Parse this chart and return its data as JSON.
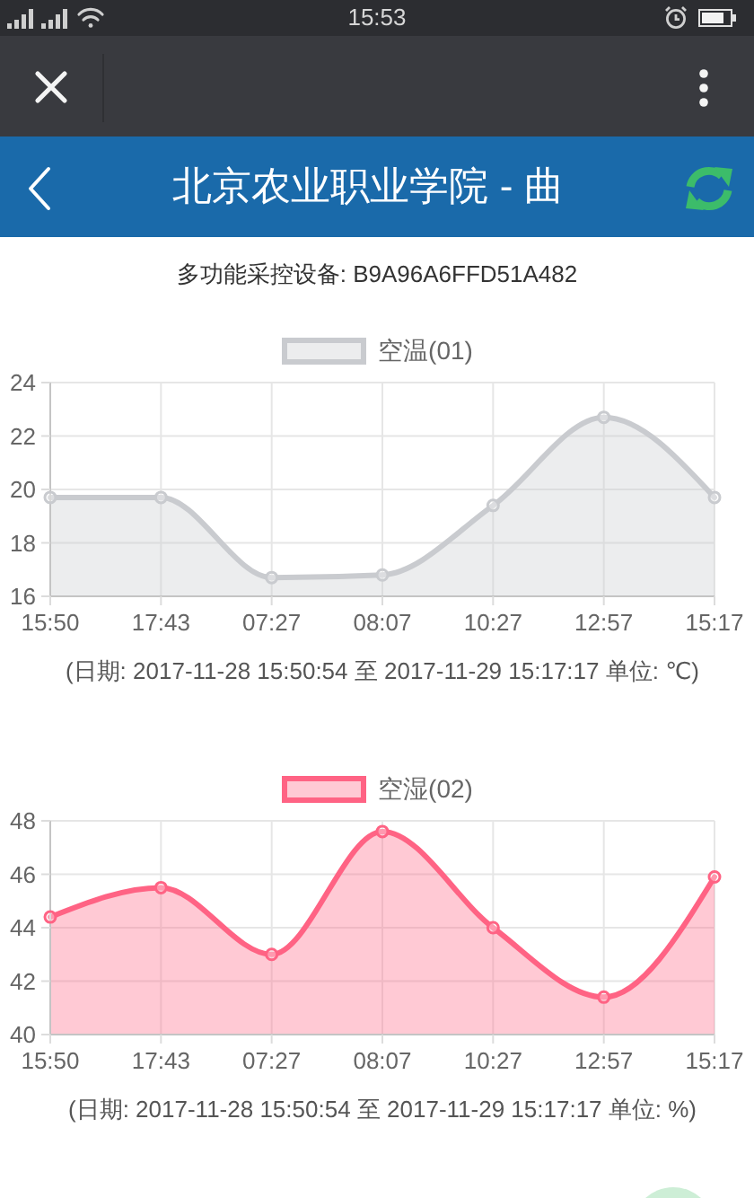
{
  "chart_data": [
    {
      "type": "area",
      "title": "北京农业职业学院 - 曲",
      "subtitle": "多功能采控设备: B9A96A6FFD51A482",
      "annotations": [
        "15:53"
      ],
      "xlabel": "(日期: 2017-11-28 15:50:54 至 2017-11-29 15:17:17 单位: ℃)",
      "categories": [
        "15:50",
        "17:43",
        "07:27",
        "08:07",
        "10:27",
        "12:57",
        "15:17"
      ],
      "series": [
        {
          "name": "空温(01)",
          "color": "#c9cbcf",
          "values": [
            19.7,
            19.7,
            16.7,
            16.8,
            19.4,
            22.7,
            19.7
          ]
        }
      ],
      "ylim": [
        16,
        24
      ],
      "yticks": [
        16,
        18,
        20,
        22,
        24
      ],
      "grid": true,
      "legend": "top",
      "marker": "circle",
      "line_style": "solid"
    },
    {
      "type": "area",
      "xlabel": "(日期: 2017-11-28 15:50:54 至 2017-11-29 15:17:17 单位: %)",
      "categories": [
        "15:50",
        "17:43",
        "07:27",
        "08:07",
        "10:27",
        "12:57",
        "15:17"
      ],
      "series": [
        {
          "name": "空湿(02)",
          "color": "#ff6384",
          "values": [
            44.4,
            45.5,
            43.0,
            47.6,
            44.0,
            41.4,
            45.9
          ]
        }
      ],
      "ylim": [
        40,
        48
      ],
      "yticks": [
        40,
        42,
        44,
        46,
        48
      ],
      "grid": true,
      "legend": "top",
      "marker": "circle",
      "line_style": "solid"
    }
  ]
}
